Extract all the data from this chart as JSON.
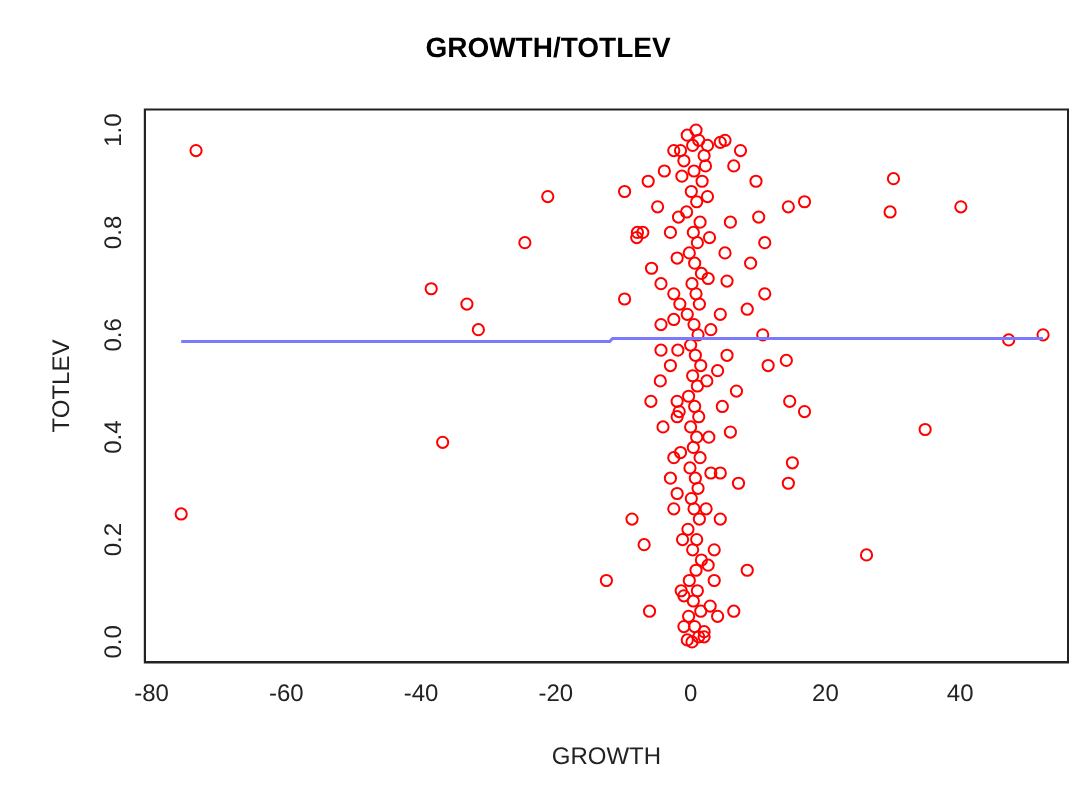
{
  "chart_data": {
    "type": "scatter",
    "title": "GROWTH/TOTLEV",
    "xlabel": "GROWTH",
    "ylabel": "TOTLEV",
    "marker": "circle",
    "xlim": [
      -81,
      56
    ],
    "xticks": [
      -80,
      -60,
      -40,
      -20,
      0,
      20,
      40
    ],
    "ylim": [
      -0.04,
      1.04
    ],
    "yticks": [
      {
        "value": 0,
        "label": "0.0"
      },
      {
        "value": 0.2,
        "label": "0.2"
      },
      {
        "value": 0.4,
        "label": "0.4"
      },
      {
        "value": 0.6,
        "label": "0.6"
      },
      {
        "value": 0.8,
        "label": "0.8"
      },
      {
        "value": 1,
        "label": "1.0"
      }
    ],
    "series": [
      {
        "type": "scatter",
        "color": "#ff0000",
        "x": [
          0.2,
          1.2,
          0.6,
          -0.3,
          1.5,
          0.4,
          1.0,
          -0.2,
          0.8,
          1.6,
          0.3,
          0.9,
          -0.4,
          1.3,
          0.5,
          0.1,
          1.1,
          0.7,
          -0.1,
          1.4,
          0.4,
          0.9,
          0.0,
          1.2,
          0.6,
          -0.3,
          1.0,
          0.3,
          1.5,
          0.7,
          0.0,
          1.1,
          0.5,
          -0.5,
          1.3,
          0.8,
          0.2,
          1.6,
          0.6,
          -0.2,
          1.0,
          0.4,
          1.4,
          -0.6,
          0.9,
          0.1,
          1.7,
          0.5,
          -1.0,
          2.0,
          0.3,
          1.2,
          -0.5,
          0.8,
          2.5,
          -1.5,
          2.2,
          -1.3,
          2.5,
          -1.8,
          2.8,
          -2.0,
          2.6,
          -1.6,
          3.0,
          -1.9,
          2.4,
          -1.7,
          2.7,
          -1.5,
          3.0,
          -2.0,
          2.3,
          -1.2,
          2.6,
          -1.4,
          2.9,
          -1.0,
          2.0,
          -73.4,
          -75.6,
          -38.5,
          -33.2,
          -31.5,
          -36.8,
          -24.6,
          -21.2,
          -12.5,
          -9.8,
          -9.8,
          -8.7,
          -6.9,
          -6.1,
          -8.0,
          -7.1,
          -5.8,
          -6.3,
          -4.5,
          -5.9,
          -4.1,
          -4.4,
          -4.4,
          30.1,
          29.6,
          40.1,
          47.2,
          52.3,
          34.8,
          26.1,
          14.5,
          16.9,
          14.7,
          16.9,
          15.1,
          14.5,
          14.2,
          11.5,
          11.0,
          11.0,
          8.9,
          10.1,
          9.7,
          7.4,
          8.4,
          6.4,
          8.4,
          10.7,
          7.1,
          4.4,
          6.8,
          5.9,
          -3.9,
          -2.5,
          -4.9,
          -7.9,
          -3.0,
          -4.4,
          -2.5,
          -2.5,
          -3.0,
          -2.0,
          -2.0,
          -2.5,
          -3.0,
          -2.5,
          -1.0,
          -0.5,
          4.4,
          5.1,
          6.4,
          5.9,
          5.1,
          5.4,
          4.4,
          5.4,
          4.0,
          4.7,
          4.4,
          3.5,
          3.5,
          4.0,
          2.0
        ],
        "values": [
          0.0,
          0.01,
          0.03,
          0.05,
          0.06,
          0.08,
          0.1,
          0.12,
          0.14,
          0.16,
          0.18,
          0.2,
          0.22,
          0.24,
          0.26,
          0.28,
          0.3,
          0.32,
          0.34,
          0.36,
          0.38,
          0.4,
          0.42,
          0.44,
          0.46,
          0.48,
          0.5,
          0.52,
          0.54,
          0.56,
          0.58,
          0.6,
          0.62,
          0.64,
          0.66,
          0.68,
          0.7,
          0.72,
          0.74,
          0.76,
          0.78,
          0.8,
          0.82,
          0.84,
          0.86,
          0.88,
          0.9,
          0.92,
          0.94,
          0.95,
          0.97,
          0.98,
          0.99,
          1.0,
          0.97,
          0.96,
          0.93,
          0.91,
          0.87,
          0.83,
          0.79,
          0.75,
          0.71,
          0.66,
          0.61,
          0.57,
          0.51,
          0.45,
          0.4,
          0.37,
          0.33,
          0.29,
          0.26,
          0.2,
          0.15,
          0.1,
          0.07,
          0.03,
          0.02,
          0.96,
          0.25,
          0.69,
          0.66,
          0.61,
          0.39,
          0.78,
          0.87,
          0.12,
          0.88,
          0.67,
          0.24,
          0.19,
          0.06,
          0.79,
          0.8,
          0.73,
          0.9,
          0.51,
          0.47,
          0.42,
          0.57,
          0.62,
          0.905,
          0.84,
          0.85,
          0.59,
          0.6,
          0.415,
          0.17,
          0.85,
          0.86,
          0.47,
          0.45,
          0.35,
          0.31,
          0.55,
          0.54,
          0.68,
          0.78,
          0.74,
          0.83,
          0.9,
          0.96,
          0.14,
          0.06,
          0.65,
          0.6,
          0.31,
          0.33,
          0.49,
          0.41,
          0.92,
          0.96,
          0.85,
          0.8,
          0.8,
          0.7,
          0.68,
          0.63,
          0.54,
          0.47,
          0.44,
          0.36,
          0.32,
          0.26,
          0.09,
          0.004,
          0.976,
          0.98,
          0.93,
          0.82,
          0.76,
          0.705,
          0.64,
          0.56,
          0.53,
          0.46,
          0.24,
          0.18,
          0.12,
          0.05,
          0.01
        ]
      },
      {
        "type": "line",
        "color": "#7a7aff",
        "marker": "none",
        "x": [
          -75.6,
          -12,
          -11.6,
          52.3
        ],
        "values": [
          0.587,
          0.587,
          0.593,
          0.593
        ]
      }
    ]
  }
}
